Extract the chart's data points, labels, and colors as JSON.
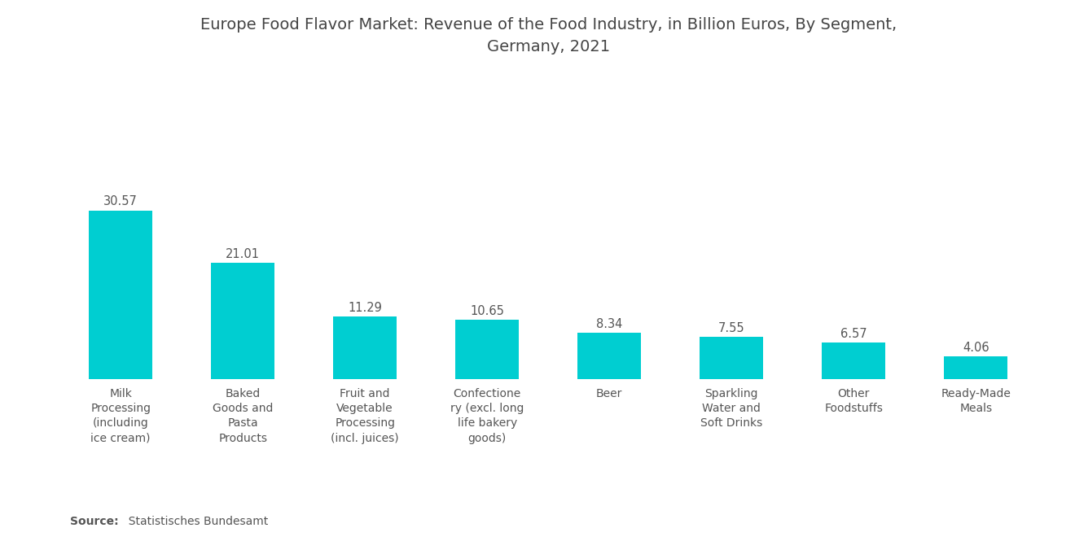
{
  "title": "Europe Food Flavor Market: Revenue of the Food Industry, in Billion Euros, By Segment,\nGermany, 2021",
  "categories": [
    "Milk\nProcessing\n(including\nice cream)",
    "Baked\nGoods and\nPasta\nProducts",
    "Fruit and\nVegetable\nProcessing\n(incl. juices)",
    "Confectione\nry (excl. long\nlife bakery\ngoods)",
    "Beer",
    "Sparkling\nWater and\nSoft Drinks",
    "Other\nFoodstuffs",
    "Ready-Made\nMeals"
  ],
  "values": [
    30.57,
    21.01,
    11.29,
    10.65,
    8.34,
    7.55,
    6.57,
    4.06
  ],
  "bar_color": "#00CED1",
  "background_color": "#ffffff",
  "source_bold": "Source:",
  "source_text": "  Statistisches Bundesamt",
  "title_fontsize": 14,
  "label_fontsize": 10,
  "value_fontsize": 10.5,
  "source_fontsize": 10,
  "ylim": [
    0,
    55
  ]
}
